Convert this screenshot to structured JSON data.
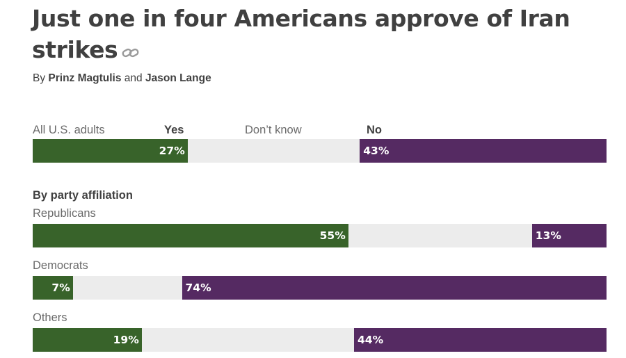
{
  "title": "Just one in four Americans approve of Iran strikes",
  "byline": {
    "prefix": "By",
    "author1": "Prinz Magtulis",
    "joiner": "and",
    "author2": "Jason Lange"
  },
  "colors": {
    "yes": "#38632a",
    "dont_know": "#ececec",
    "no": "#552a62"
  },
  "chart_data": {
    "type": "stacked-bar-100",
    "headers": {
      "group": "All U.S. adults",
      "yes": "Yes",
      "dont_know": "Don’t know",
      "no": "No"
    },
    "section_title": "By party affiliation",
    "rows": [
      {
        "label": "All U.S. adults",
        "yes": 27,
        "no": 43,
        "yes_label": "27%",
        "no_label": "43%"
      },
      {
        "label": "Republicans",
        "yes": 55,
        "no": 13,
        "yes_label": "55%",
        "no_label": "13%"
      },
      {
        "label": "Democrats",
        "yes": 7,
        "no": 74,
        "yes_label": "7%",
        "no_label": "74%"
      },
      {
        "label": "Others",
        "yes": 19,
        "no": 44,
        "yes_label": "19%",
        "no_label": "44%"
      }
    ]
  }
}
